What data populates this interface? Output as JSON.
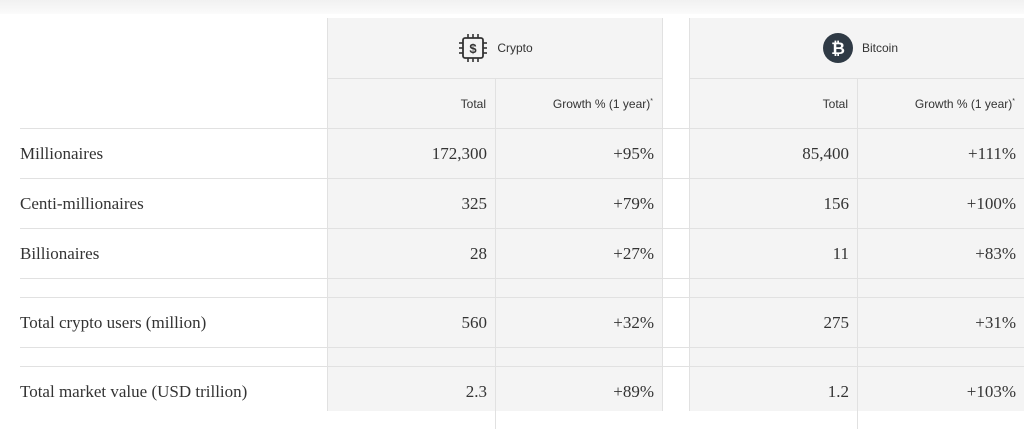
{
  "columns": {
    "crypto": {
      "title": "Crypto",
      "icon": "chip-dollar-icon"
    },
    "bitcoin": {
      "title": "Bitcoin",
      "icon": "bitcoin-icon"
    },
    "total_label": "Total",
    "growth_label": "Growth % (1 year)",
    "growth_footnote": "*"
  },
  "rows": [
    {
      "label": "Millionaires",
      "crypto_total": "172,300",
      "crypto_growth": "+95%",
      "btc_total": "85,400",
      "btc_growth": "+111%"
    },
    {
      "label": "Centi-millionaires",
      "crypto_total": "325",
      "crypto_growth": "+79%",
      "btc_total": "156",
      "btc_growth": "+100%"
    },
    {
      "label": "Billionaires",
      "crypto_total": "28",
      "crypto_growth": "+27%",
      "btc_total": "11",
      "btc_growth": "+83%"
    },
    {
      "label": "Total crypto users (million)",
      "crypto_total": "560",
      "crypto_growth": "+32%",
      "btc_total": "275",
      "btc_growth": "+31%"
    },
    {
      "label": "Total market value (USD trillion)",
      "crypto_total": "2.3",
      "crypto_growth": "+89%",
      "btc_total": "1.2",
      "btc_growth": "+103%"
    }
  ]
}
